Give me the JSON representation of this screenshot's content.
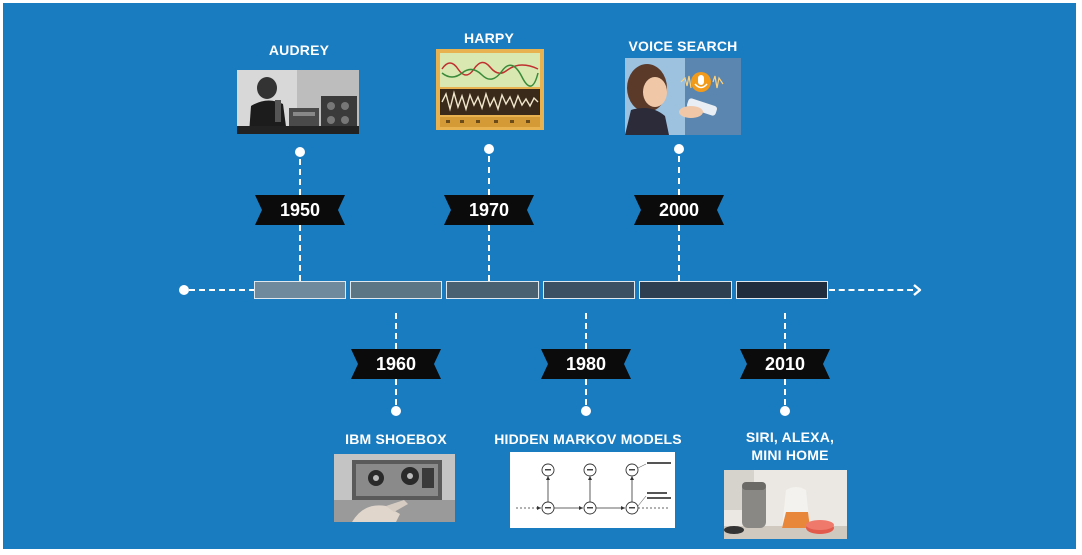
{
  "colors": {
    "background": "#1a7cc0",
    "milestone_tag": "#0b0b0b",
    "segments": [
      "#6f8a9d",
      "#5c7686",
      "#4a6172",
      "#3b5062",
      "#2d3f51",
      "#1f2d3c"
    ]
  },
  "timeline": {
    "top_milestones": [
      {
        "year": "1950",
        "title": "AUDREY",
        "image_icon": "audrey-photo"
      },
      {
        "year": "1970",
        "title": "HARPY",
        "image_icon": "harpy-spectrogram"
      },
      {
        "year": "2000",
        "title": "VOICE SEARCH",
        "image_icon": "voice-search-photo"
      }
    ],
    "bottom_milestones": [
      {
        "year": "1960",
        "title": "IBM SHOEBOX",
        "image_icon": "ibm-shoebox-photo"
      },
      {
        "year": "1980",
        "title": "HIDDEN MARKOV MODELS",
        "image_icon": "hmm-diagram"
      },
      {
        "year": "2010",
        "title_lines": [
          "SIRI, ALEXA,",
          "MINI HOME"
        ],
        "image_icon": "smart-speakers-photo"
      }
    ]
  }
}
